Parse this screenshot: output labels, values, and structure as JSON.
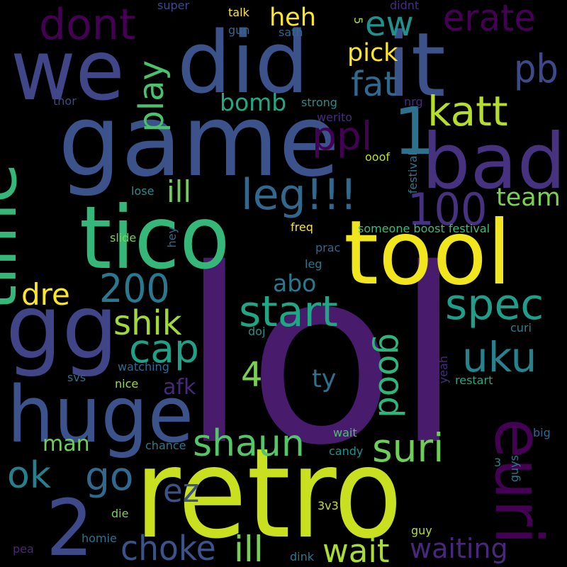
{
  "background": "#000000",
  "words": [
    {
      "id": "lol",
      "text": "lol",
      "color": "#481b6d"
    },
    {
      "id": "retro",
      "text": "retro",
      "color": "#c8e020"
    },
    {
      "id": "tool",
      "text": "tool",
      "color": "#f1e51d"
    },
    {
      "id": "game",
      "text": "game",
      "color": "#3b528b"
    },
    {
      "id": "we",
      "text": "we",
      "color": "#404688"
    },
    {
      "id": "did",
      "text": "did",
      "color": "#3b528b"
    },
    {
      "id": "it",
      "text": "it",
      "color": "#3b528b"
    },
    {
      "id": "tico",
      "text": "tico",
      "color": "#35b779"
    },
    {
      "id": "gg",
      "text": "gg",
      "color": "#414487"
    },
    {
      "id": "huge",
      "text": "huge",
      "color": "#3b528b"
    },
    {
      "id": "bad",
      "text": "bad",
      "color": "#46327e"
    },
    {
      "id": "time",
      "text": "time",
      "color": "#35b779"
    },
    {
      "id": "euri",
      "text": "euri",
      "color": "#440154"
    },
    {
      "id": "one",
      "text": "1",
      "color": "#2c728e"
    },
    {
      "id": "two",
      "text": "2",
      "color": "#3e4989"
    },
    {
      "id": "dont",
      "text": "dont",
      "color": "#440154"
    },
    {
      "id": "erate",
      "text": "erate",
      "color": "#440154"
    },
    {
      "id": "ew",
      "text": "ew",
      "color": "#21918c"
    },
    {
      "id": "pb",
      "text": "pb",
      "color": "#3e4989"
    },
    {
      "id": "fat",
      "text": "fat",
      "color": "#31688e"
    },
    {
      "id": "katt",
      "text": "katt",
      "color": "#b5de2b"
    },
    {
      "id": "ppl",
      "text": "ppl",
      "color": "#440154"
    },
    {
      "id": "leg3",
      "text": "leg!!!",
      "color": "#31688e"
    },
    {
      "id": "ill",
      "text": "ill",
      "color": "#6ece58"
    },
    {
      "id": "play",
      "text": "play",
      "color": "#4ac16d"
    },
    {
      "id": "hundred",
      "text": "100",
      "color": "#46327e"
    },
    {
      "id": "start",
      "text": "start",
      "color": "#21a685"
    },
    {
      "id": "twohundred",
      "text": "200",
      "color": "#2a788e"
    },
    {
      "id": "spec",
      "text": "spec",
      "color": "#1f9e89"
    },
    {
      "id": "shik",
      "text": "shik",
      "color": "#a0da39"
    },
    {
      "id": "cap",
      "text": "cap",
      "color": "#1fa187"
    },
    {
      "id": "uku",
      "text": "uku",
      "color": "#26828e"
    },
    {
      "id": "dre",
      "text": "dre",
      "color": "#fde725"
    },
    {
      "id": "four",
      "text": "4",
      "color": "#7ad151"
    },
    {
      "id": "shaun",
      "text": "shaun",
      "color": "#54c568"
    },
    {
      "id": "suri",
      "text": "suri",
      "color": "#6ece58"
    },
    {
      "id": "good",
      "text": "good",
      "color": "#2fb47c"
    },
    {
      "id": "ok",
      "text": "ok",
      "color": "#277f8e"
    },
    {
      "id": "go",
      "text": "go",
      "color": "#31688e"
    },
    {
      "id": "ez",
      "text": "ez",
      "color": "#3b528b"
    },
    {
      "id": "choke",
      "text": "choke",
      "color": "#3b528b"
    },
    {
      "id": "ill2",
      "text": "ill",
      "color": "#7ad151"
    },
    {
      "id": "wait",
      "text": "wait",
      "color": "#aadc32"
    },
    {
      "id": "waiting",
      "text": "waiting",
      "color": "#482878"
    },
    {
      "id": "heh",
      "text": "heh",
      "color": "#fde725"
    },
    {
      "id": "pick",
      "text": "pick",
      "color": "#fde725"
    },
    {
      "id": "bomb",
      "text": "bomb",
      "color": "#22a884"
    },
    {
      "id": "team",
      "text": "team",
      "color": "#7ad151"
    },
    {
      "id": "abo",
      "text": "abo",
      "color": "#2a788e"
    },
    {
      "id": "ty",
      "text": "ty",
      "color": "#2c728e"
    },
    {
      "id": "afk",
      "text": "afk",
      "color": "#482878"
    },
    {
      "id": "man",
      "text": "man",
      "color": "#6ece58"
    },
    {
      "id": "super",
      "text": "super",
      "color": "#3e4989"
    },
    {
      "id": "talk",
      "text": "talk",
      "color": "#fde725"
    },
    {
      "id": "gun",
      "text": "gun",
      "color": "#31688e"
    },
    {
      "id": "sath",
      "text": "sath",
      "color": "#31688e"
    },
    {
      "id": "didnt",
      "text": "didnt",
      "color": "#472d7b"
    },
    {
      "id": "five",
      "text": "5",
      "color": "#aadc32"
    },
    {
      "id": "thor",
      "text": "thor",
      "color": "#3e4989"
    },
    {
      "id": "strong",
      "text": "strong",
      "color": "#21918c"
    },
    {
      "id": "nrg",
      "text": "nrg",
      "color": "#472d7b"
    },
    {
      "id": "werito",
      "text": "werito",
      "color": "#472d7b"
    },
    {
      "id": "ooof",
      "text": "ooof",
      "color": "#c2df23"
    },
    {
      "id": "festival",
      "text": "festival",
      "color": "#2a788e"
    },
    {
      "id": "lose",
      "text": "lose",
      "color": "#21918c"
    },
    {
      "id": "hey",
      "text": "hey",
      "color": "#31688e"
    },
    {
      "id": "freq",
      "text": "freq",
      "color": "#fde725"
    },
    {
      "id": "boost",
      "text": "someone boost festival",
      "color": "#3dbc74"
    },
    {
      "id": "slide",
      "text": "slide",
      "color": "#7ad151"
    },
    {
      "id": "prac",
      "text": "prac",
      "color": "#31688e"
    },
    {
      "id": "leg",
      "text": "leg",
      "color": "#2a788e"
    },
    {
      "id": "doj",
      "text": "doj",
      "color": "#21918c"
    },
    {
      "id": "curi",
      "text": "curi",
      "color": "#26828e"
    },
    {
      "id": "watching",
      "text": "watching",
      "color": "#31688e"
    },
    {
      "id": "yeah",
      "text": "yeah",
      "color": "#472d7b"
    },
    {
      "id": "svs",
      "text": "svs",
      "color": "#2c728e"
    },
    {
      "id": "nice",
      "text": "nice",
      "color": "#a0da39"
    },
    {
      "id": "restart",
      "text": "restart",
      "color": "#22a884"
    },
    {
      "id": "wait2",
      "text": "wait",
      "color": "#4ac16d"
    },
    {
      "id": "big",
      "text": "big",
      "color": "#31688e"
    },
    {
      "id": "chance",
      "text": "chance",
      "color": "#2a788e"
    },
    {
      "id": "candy",
      "text": "candy",
      "color": "#21918c"
    },
    {
      "id": "guys",
      "text": "guys",
      "color": "#2a788e"
    },
    {
      "id": "three",
      "text": "3",
      "color": "#26828e"
    },
    {
      "id": "die",
      "text": "die",
      "color": "#7ad151"
    },
    {
      "id": "threevthree",
      "text": "3v3",
      "color": "#c8e020"
    },
    {
      "id": "homie",
      "text": "homie",
      "color": "#2c728e"
    },
    {
      "id": "guy",
      "text": "guy",
      "color": "#b5de2b"
    },
    {
      "id": "pea",
      "text": "pea",
      "color": "#482878"
    },
    {
      "id": "dink",
      "text": "dink",
      "color": "#2a788e"
    }
  ]
}
